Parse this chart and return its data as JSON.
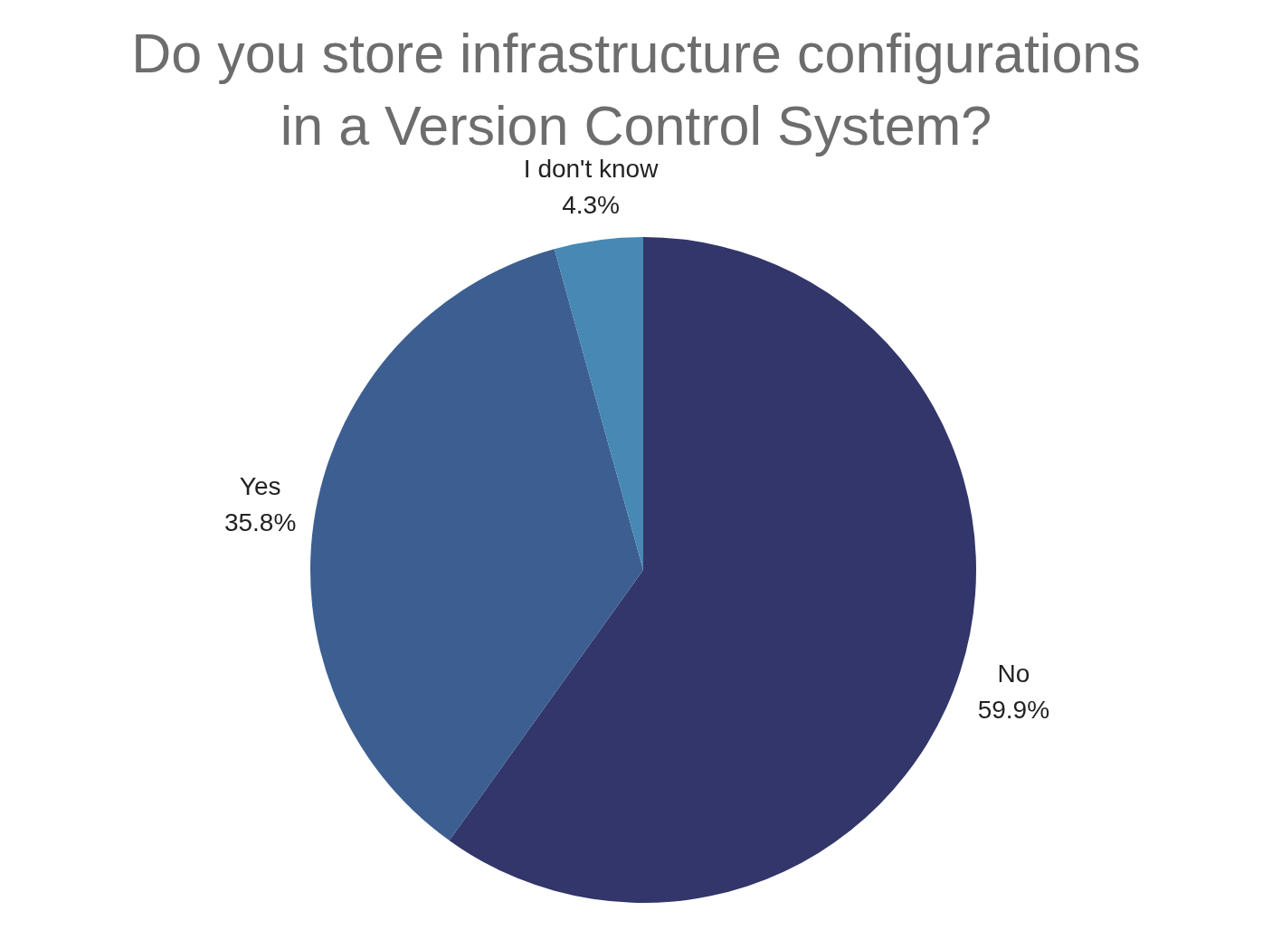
{
  "chart_data": {
    "type": "pie",
    "title": "Do you store infrastructure configurations in a Version Control System?",
    "categories": [
      "No",
      "Yes",
      "I don't know"
    ],
    "values": [
      59.9,
      35.8,
      4.3
    ],
    "colors": [
      "#33366a",
      "#3c5e91",
      "#4788b4"
    ],
    "value_labels": [
      "59.9%",
      "35.8%",
      "4.3%"
    ]
  }
}
